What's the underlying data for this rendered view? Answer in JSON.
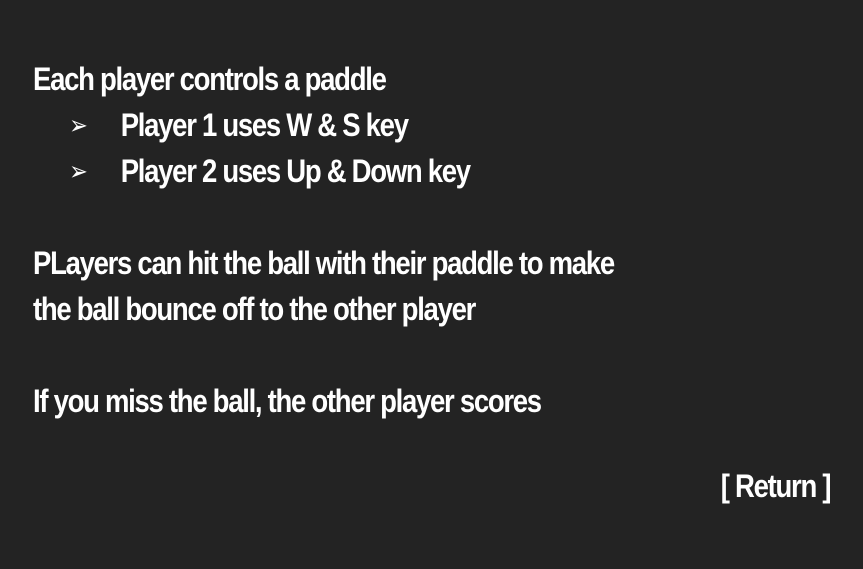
{
  "screen": {
    "title_line": "Each player controls a paddle",
    "controls": [
      {
        "bullet": "➢",
        "text": "Player 1 uses W & S key"
      },
      {
        "bullet": "➢",
        "text": "Player 2 uses Up & Down key"
      }
    ],
    "hit_line_1": "PLayers can hit the ball with their paddle to  make",
    "hit_line_2": "the ball bounce off to the other player",
    "score_line": "If you miss the ball, the other player scores",
    "return_label": "[ Return ]"
  },
  "colors": {
    "background": "#232323",
    "text": "#ffffff"
  }
}
